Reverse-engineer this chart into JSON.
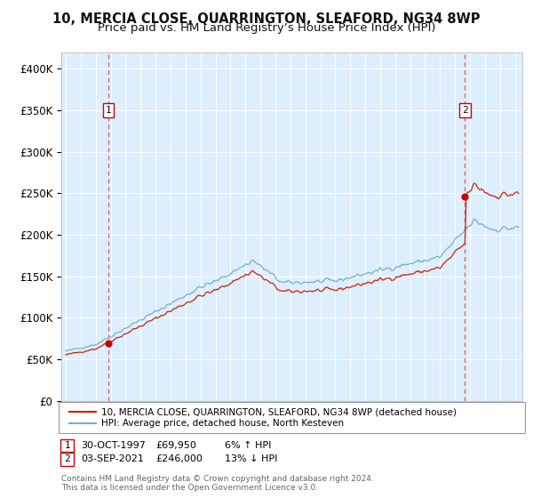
{
  "title": "10, MERCIA CLOSE, QUARRINGTON, SLEAFORD, NG34 8WP",
  "subtitle": "Price paid vs. HM Land Registry’s House Price Index (HPI)",
  "title_fontsize": 10.5,
  "subtitle_fontsize": 9.5,
  "background_color": "#ffffff",
  "plot_bg_color": "#ddeeff",
  "grid_color": "#ffffff",
  "ylim": [
    0,
    420000
  ],
  "yticks": [
    0,
    50000,
    100000,
    150000,
    200000,
    250000,
    300000,
    350000,
    400000
  ],
  "ytick_labels": [
    "£0",
    "£50K",
    "£100K",
    "£150K",
    "£200K",
    "£250K",
    "£300K",
    "£350K",
    "£400K"
  ],
  "sale1_date": 1997.83,
  "sale1_price": 69950,
  "sale2_date": 2021.67,
  "sale2_price": 246000,
  "sale1_above_pct": 1.06,
  "sale2_below_pct": 0.87,
  "legend_line1": "10, MERCIA CLOSE, QUARRINGTON, SLEAFORD, NG34 8WP (detached house)",
  "legend_line2": "HPI: Average price, detached house, North Kesteven",
  "footer": "Contains HM Land Registry data © Crown copyright and database right 2024.\nThis data is licensed under the Open Government Licence v3.0.",
  "line_color_sale": "#cc2200",
  "line_color_hpi": "#7aaccc",
  "marker_color": "#cc0000",
  "box_color": "#cc0000",
  "vline_color": "#dd4444"
}
